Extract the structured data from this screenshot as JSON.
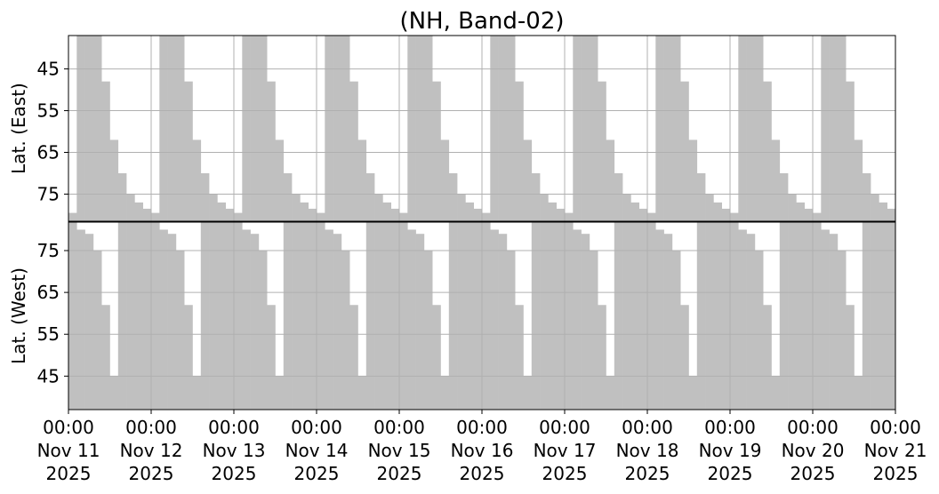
{
  "chart_data": [
    {
      "type": "bar",
      "title": "(NH, Band-02)",
      "ylabel": "Lat. (East)",
      "color": "#c0c0c0",
      "grid": true,
      "invert_y": true,
      "xlim": [
        0,
        10
      ],
      "xticks": [
        0,
        1,
        2,
        3,
        4,
        5,
        6,
        7,
        8,
        9,
        10
      ],
      "ylim": [
        37,
        81.5
      ],
      "yticks": [
        45,
        55,
        65,
        75
      ],
      "x": [
        0,
        0.1,
        0.2,
        0.3,
        0.4,
        0.5,
        0.6,
        0.7,
        0.8,
        0.9,
        1,
        1.1,
        1.2,
        1.3,
        1.4,
        1.5,
        1.6,
        1.7,
        1.8,
        1.9,
        2,
        2.1,
        2.2,
        2.3,
        2.4,
        2.5,
        2.6,
        2.7,
        2.8,
        2.9,
        3,
        3.1,
        3.2,
        3.3,
        3.4,
        3.5,
        3.6,
        3.7,
        3.8,
        3.9,
        4,
        4.1,
        4.2,
        4.3,
        4.4,
        4.5,
        4.6,
        4.7,
        4.8,
        4.9,
        5,
        5.1,
        5.2,
        5.3,
        5.4,
        5.5,
        5.6,
        5.7,
        5.8,
        5.9,
        6,
        6.1,
        6.2,
        6.3,
        6.4,
        6.5,
        6.6,
        6.7,
        6.8,
        6.9,
        7,
        7.1,
        7.2,
        7.3,
        7.4,
        7.5,
        7.6,
        7.7,
        7.8,
        7.9,
        8,
        8.1,
        8.2,
        8.3,
        8.4,
        8.5,
        8.6,
        8.7,
        8.8,
        8.9,
        9,
        9.1,
        9.2,
        9.3,
        9.4,
        9.5,
        9.6,
        9.7,
        9.8,
        9.9
      ],
      "values": [
        79.5,
        37,
        37,
        37,
        48,
        62,
        70,
        75,
        77,
        78.5,
        79.5,
        37,
        37,
        37,
        48,
        62,
        70,
        75,
        77,
        78.5,
        79.5,
        37,
        37,
        37,
        48,
        62,
        70,
        75,
        77,
        78.5,
        79.5,
        37,
        37,
        37,
        48,
        62,
        70,
        75,
        77,
        78.5,
        79.5,
        37,
        37,
        37,
        48,
        62,
        70,
        75,
        77,
        78.5,
        79.5,
        37,
        37,
        37,
        48,
        62,
        70,
        75,
        77,
        78.5,
        79.5,
        37,
        37,
        37,
        48,
        62,
        70,
        75,
        77,
        78.5,
        79.5,
        37,
        37,
        37,
        48,
        62,
        70,
        75,
        77,
        78.5,
        79.5,
        37,
        37,
        37,
        48,
        62,
        70,
        75,
        77,
        78.5,
        79.5,
        37,
        37,
        37,
        48,
        62,
        70,
        75,
        77,
        78.5
      ]
    },
    {
      "type": "bar",
      "ylabel": "Lat. (West)",
      "color": "#c0c0c0",
      "grid": true,
      "xlim": [
        0,
        10
      ],
      "xticks": [
        {
          "value": 0,
          "label": [
            "00:00",
            "Nov 11",
            "2025"
          ]
        },
        {
          "value": 1,
          "label": [
            "00:00",
            "Nov 12",
            "2025"
          ]
        },
        {
          "value": 2,
          "label": [
            "00:00",
            "Nov 13",
            "2025"
          ]
        },
        {
          "value": 3,
          "label": [
            "00:00",
            "Nov 14",
            "2025"
          ]
        },
        {
          "value": 4,
          "label": [
            "00:00",
            "Nov 15",
            "2025"
          ]
        },
        {
          "value": 5,
          "label": [
            "00:00",
            "Nov 16",
            "2025"
          ]
        },
        {
          "value": 6,
          "label": [
            "00:00",
            "Nov 17",
            "2025"
          ]
        },
        {
          "value": 7,
          "label": [
            "00:00",
            "Nov 18",
            "2025"
          ]
        },
        {
          "value": 8,
          "label": [
            "00:00",
            "Nov 19",
            "2025"
          ]
        },
        {
          "value": 9,
          "label": [
            "00:00",
            "Nov 20",
            "2025"
          ]
        },
        {
          "value": 10,
          "label": [
            "00:00",
            "Nov 21",
            "2025"
          ]
        }
      ],
      "ylim": [
        37,
        81.8
      ],
      "yticks": [
        45,
        55,
        65,
        75
      ],
      "x": [
        0,
        0.1,
        0.2,
        0.3,
        0.4,
        0.5,
        0.6,
        0.7,
        0.8,
        0.9,
        1,
        1.1,
        1.2,
        1.3,
        1.4,
        1.5,
        1.6,
        1.7,
        1.8,
        1.9,
        2,
        2.1,
        2.2,
        2.3,
        2.4,
        2.5,
        2.6,
        2.7,
        2.8,
        2.9,
        3,
        3.1,
        3.2,
        3.3,
        3.4,
        3.5,
        3.6,
        3.7,
        3.8,
        3.9,
        4,
        4.1,
        4.2,
        4.3,
        4.4,
        4.5,
        4.6,
        4.7,
        4.8,
        4.9,
        5,
        5.1,
        5.2,
        5.3,
        5.4,
        5.5,
        5.6,
        5.7,
        5.8,
        5.9,
        6,
        6.1,
        6.2,
        6.3,
        6.4,
        6.5,
        6.6,
        6.7,
        6.8,
        6.9,
        7,
        7.1,
        7.2,
        7.3,
        7.4,
        7.5,
        7.6,
        7.7,
        7.8,
        7.9,
        8,
        8.1,
        8.2,
        8.3,
        8.4,
        8.5,
        8.6,
        8.7,
        8.8,
        8.9,
        9,
        9.1,
        9.2,
        9.3,
        9.4,
        9.5,
        9.6,
        9.7,
        9.8,
        9.9
      ],
      "values": [
        81.8,
        80,
        79,
        75,
        62,
        45,
        81.8,
        81.8,
        81.8,
        81.8,
        81.8,
        80,
        79,
        75,
        62,
        45,
        81.8,
        81.8,
        81.8,
        81.8,
        81.8,
        80,
        79,
        75,
        62,
        45,
        81.8,
        81.8,
        81.8,
        81.8,
        81.8,
        80,
        79,
        75,
        62,
        45,
        81.8,
        81.8,
        81.8,
        81.8,
        81.8,
        80,
        79,
        75,
        62,
        45,
        81.8,
        81.8,
        81.8,
        81.8,
        81.8,
        80,
        79,
        75,
        62,
        45,
        81.8,
        81.8,
        81.8,
        81.8,
        81.8,
        80,
        79,
        75,
        62,
        45,
        81.8,
        81.8,
        81.8,
        81.8,
        81.8,
        80,
        79,
        75,
        62,
        45,
        81.8,
        81.8,
        81.8,
        81.8,
        81.8,
        80,
        79,
        75,
        62,
        45,
        81.8,
        81.8,
        81.8,
        81.8,
        81.8,
        80,
        79,
        75,
        62,
        45,
        81.8,
        81.8,
        81.8,
        81.8
      ]
    }
  ]
}
